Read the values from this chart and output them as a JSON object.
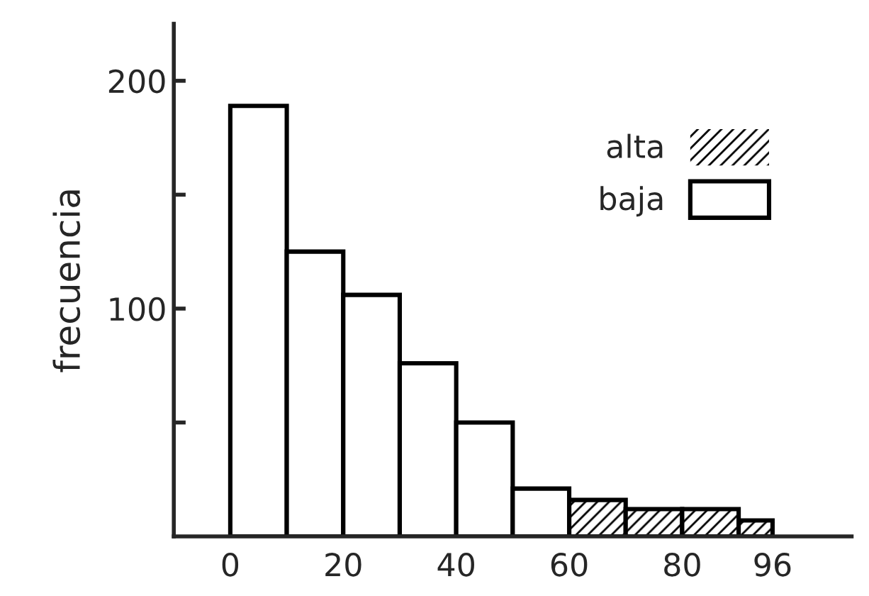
{
  "chart_data": {
    "type": "histogram",
    "ylabel": "frecuencia",
    "bins": [
      0,
      10,
      20,
      30,
      40,
      50,
      60,
      70,
      80,
      90,
      96
    ],
    "series": [
      {
        "name": "alta",
        "color": "#000000",
        "values": [
          0,
          0,
          0,
          0,
          0,
          0,
          16,
          12,
          12,
          7
        ]
      },
      {
        "name": "baja",
        "color": "#ffffff",
        "values": [
          189,
          125,
          106,
          76,
          50,
          21,
          0,
          0,
          0,
          0
        ]
      }
    ],
    "xlim": [
      -10,
      110
    ],
    "ylim": [
      0,
      225
    ],
    "xticks": [
      0,
      20,
      40,
      60,
      80,
      96
    ],
    "yticks": [
      {
        "value": 50,
        "label": null
      },
      100,
      {
        "value": 150,
        "label": null
      },
      200
    ],
    "legend": "top right",
    "grid": false
  }
}
